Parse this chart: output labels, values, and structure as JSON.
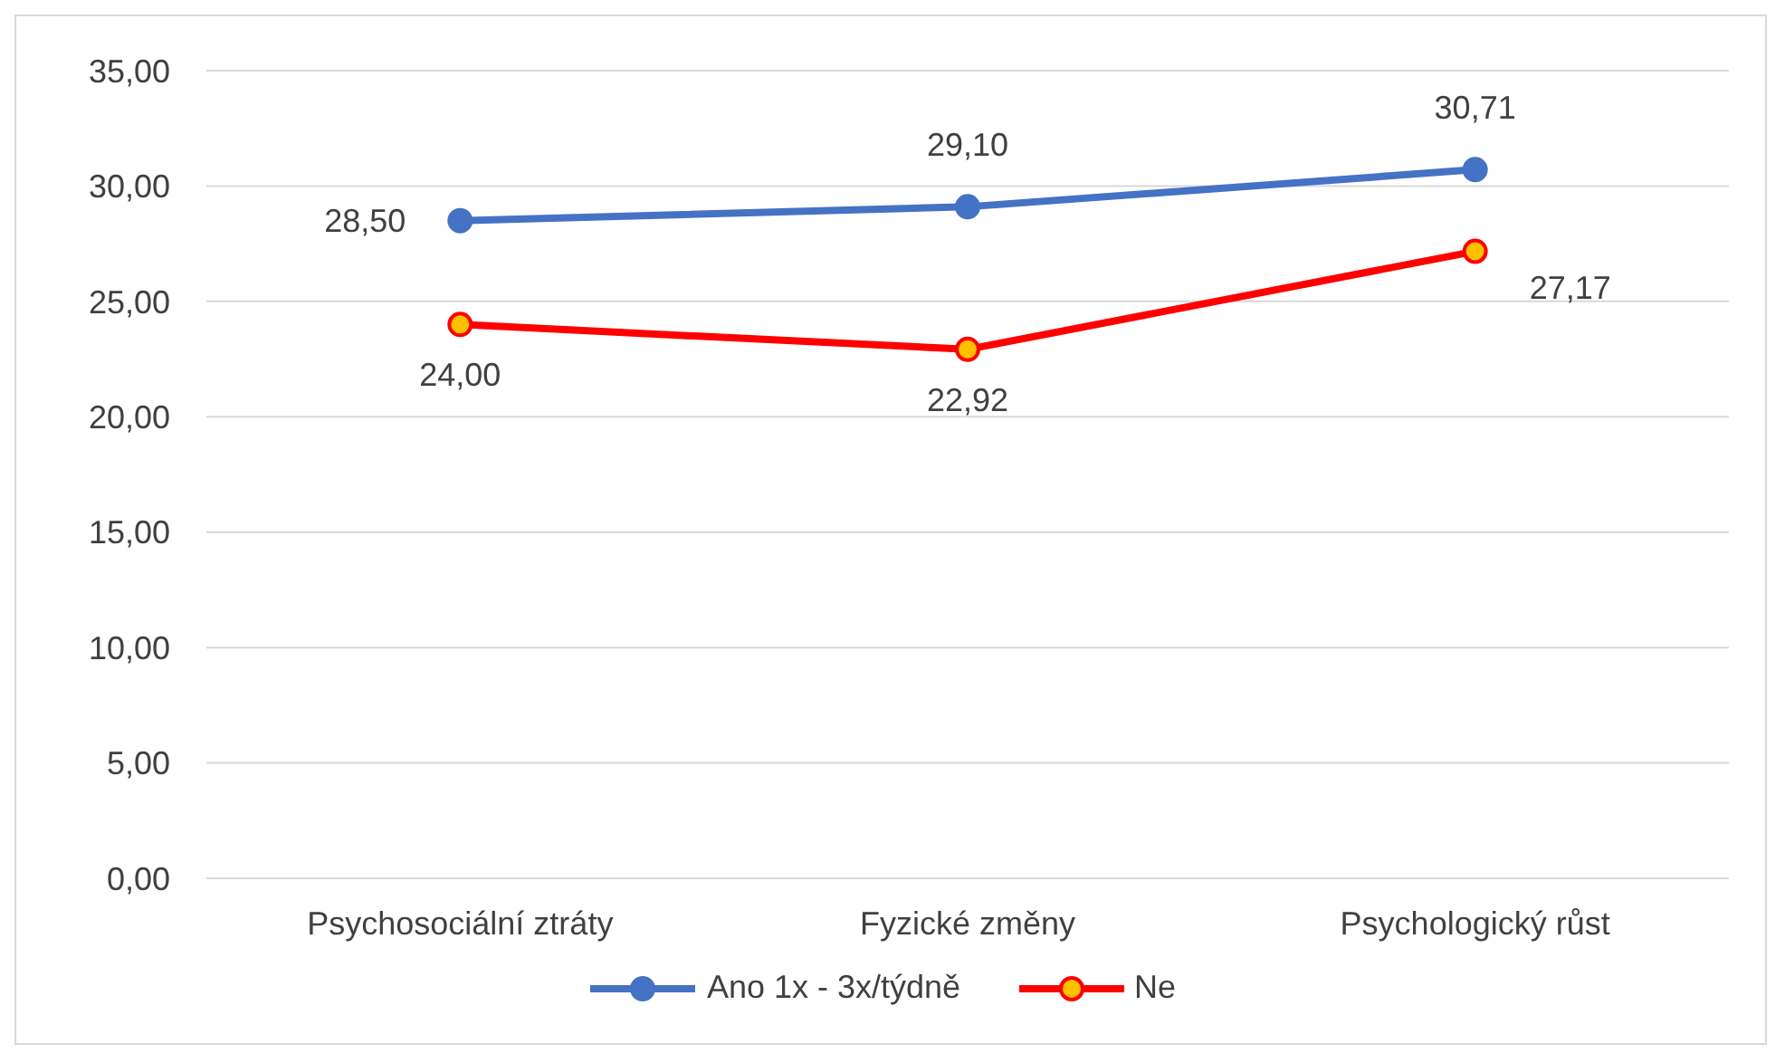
{
  "chart_data": {
    "type": "line",
    "categories": [
      "Psychosociální ztráty",
      "Fyzické změny",
      "Psychologický růst"
    ],
    "series": [
      {
        "name": "Ano 1x - 3x/týdně",
        "color": "#4472c4",
        "values": [
          28.5,
          29.1,
          30.71
        ],
        "value_labels": [
          "28,50",
          "29,10",
          "30,71"
        ]
      },
      {
        "name": "Ne",
        "color": "#ff0000",
        "values": [
          24.0,
          22.92,
          27.17
        ],
        "value_labels": [
          "24,00",
          "22,92",
          "27,17"
        ]
      }
    ],
    "ylim": [
      0,
      35
    ],
    "yticks": [
      {
        "value": 0,
        "label": "0,00"
      },
      {
        "value": 5,
        "label": "5,00"
      },
      {
        "value": 10,
        "label": "10,00"
      },
      {
        "value": 15,
        "label": "15,00"
      },
      {
        "value": 20,
        "label": "20,00"
      },
      {
        "value": 25,
        "label": "25,00"
      },
      {
        "value": 30,
        "label": "30,00"
      },
      {
        "value": 35,
        "label": "35,00"
      }
    ],
    "grid": "y",
    "legend": "bottom",
    "marker": "circle",
    "line_style": "solid"
  }
}
